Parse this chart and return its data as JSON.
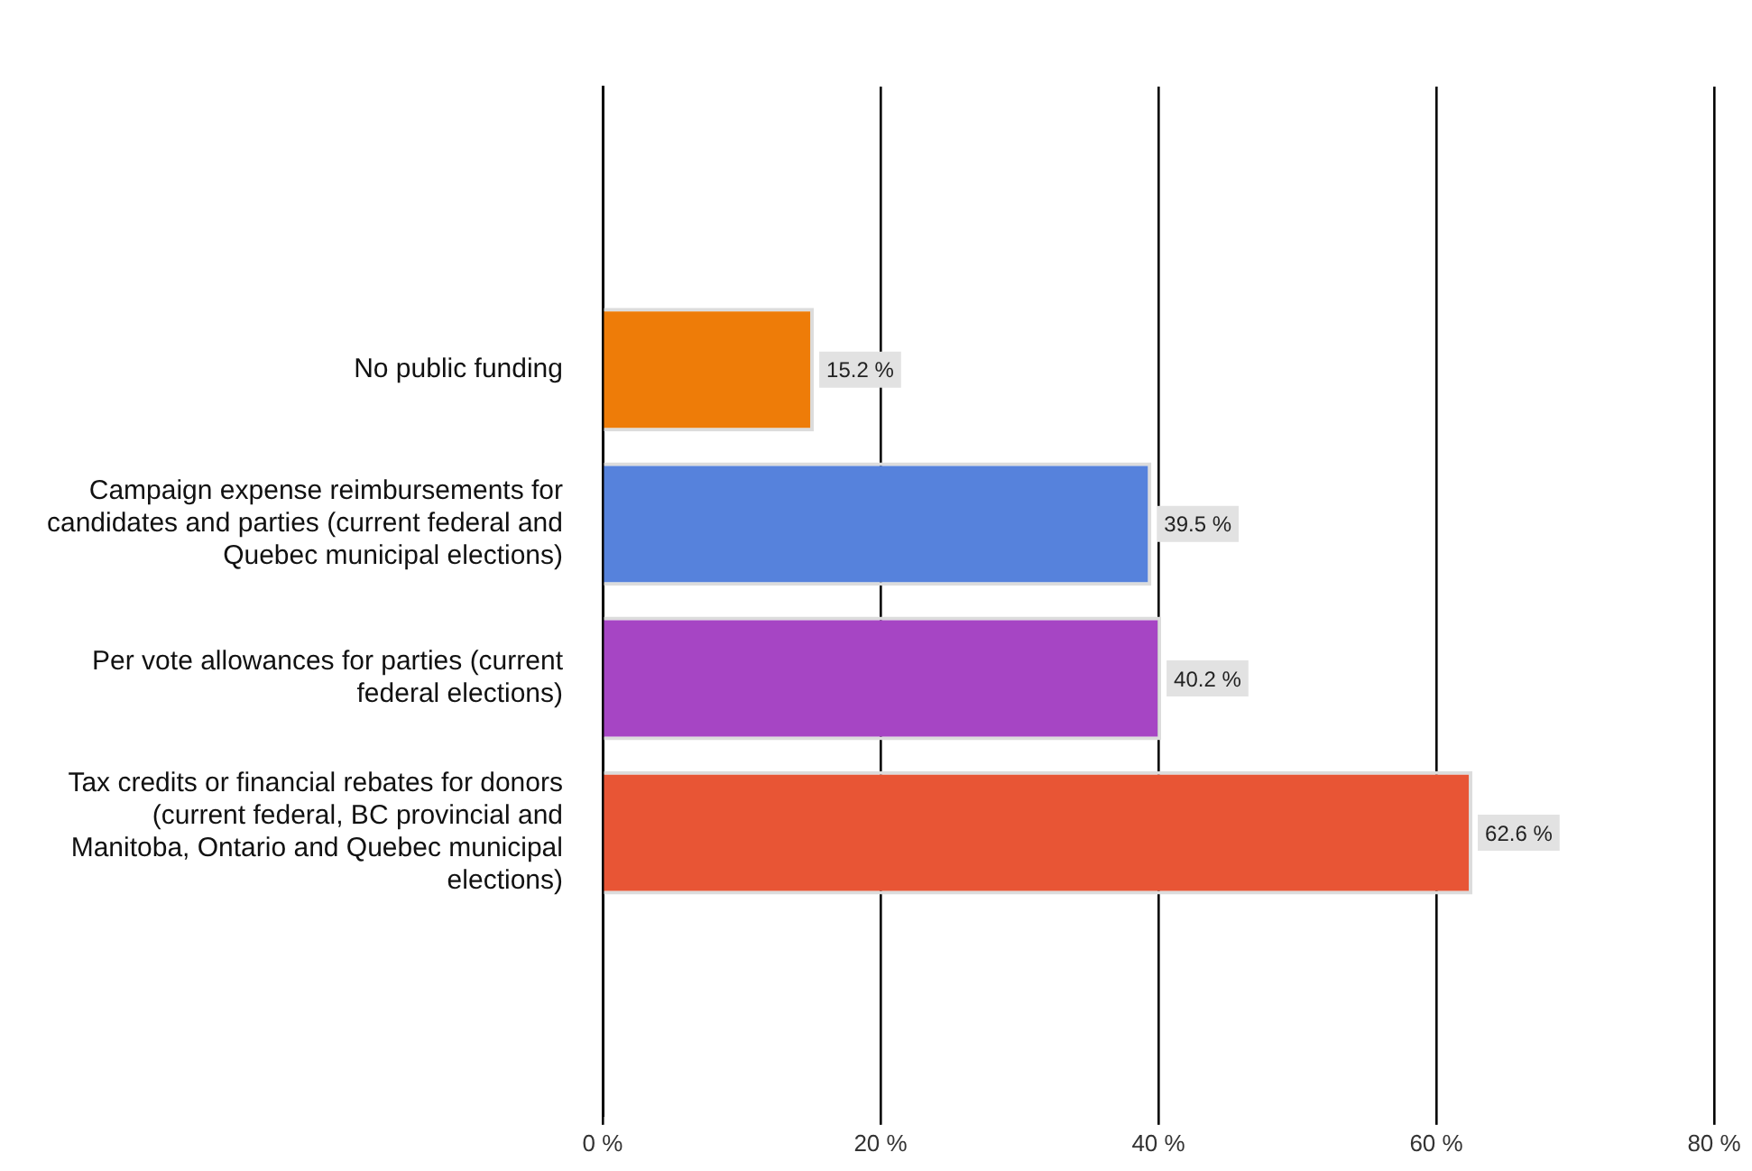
{
  "chart_data": {
    "type": "bar",
    "orientation": "horizontal",
    "categories": [
      "No public funding",
      "Campaign expense reimbursements for candidates and parties (current federal and Quebec municipal elections)",
      "Per vote allowances for parties (current federal elections)",
      "Tax credits or financial rebates for donors (current federal, BC provincial and Manitoba, Ontario and Quebec municipal elections)"
    ],
    "values": [
      15.2,
      39.5,
      40.2,
      62.6
    ],
    "colors": [
      "#ee7c08",
      "#5682dc",
      "#a645c4",
      "#e85535"
    ],
    "value_labels": [
      "15.2 %",
      "39.5 %",
      "40.2 %",
      "62.6 %"
    ],
    "xlim": [
      0,
      80
    ],
    "xticks": [
      {
        "value": 0,
        "label": "0 %"
      },
      {
        "value": 20,
        "label": "20 %"
      },
      {
        "value": 40,
        "label": "40 %"
      },
      {
        "value": 60,
        "label": "60 %"
      },
      {
        "value": 80,
        "label": "80 %"
      }
    ],
    "grid": "x",
    "legend": false
  }
}
